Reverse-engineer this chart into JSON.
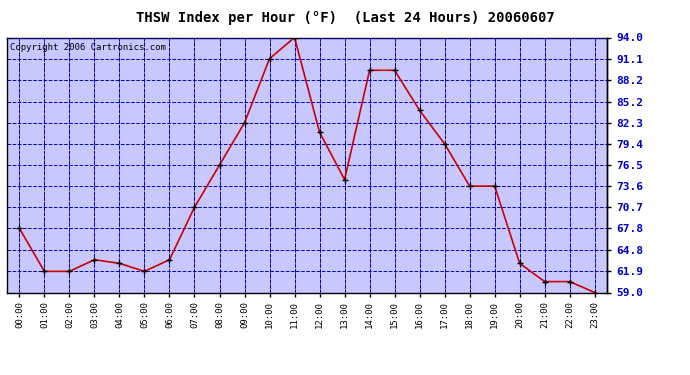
{
  "title": "THSW Index per Hour (°F)  (Last 24 Hours) 20060607",
  "copyright": "Copyright 2006 Cartronics.com",
  "hours": [
    "00:00",
    "01:00",
    "02:00",
    "03:00",
    "04:00",
    "05:00",
    "06:00",
    "07:00",
    "08:00",
    "09:00",
    "10:00",
    "11:00",
    "12:00",
    "13:00",
    "14:00",
    "15:00",
    "16:00",
    "17:00",
    "18:00",
    "19:00",
    "20:00",
    "21:00",
    "22:00",
    "23:00"
  ],
  "values": [
    67.8,
    61.9,
    61.9,
    63.5,
    63.0,
    61.9,
    63.5,
    70.7,
    76.5,
    82.3,
    91.1,
    94.0,
    81.0,
    74.5,
    89.5,
    89.5,
    84.0,
    79.4,
    73.6,
    73.6,
    63.0,
    60.5,
    60.5,
    59.0
  ],
  "y_ticks": [
    59.0,
    61.9,
    64.8,
    67.8,
    70.7,
    73.6,
    76.5,
    79.4,
    82.3,
    85.2,
    88.2,
    91.1,
    94.0
  ],
  "ylim": [
    59.0,
    94.0
  ],
  "line_color": "#cc0000",
  "marker_color": "#000000",
  "plot_bg_color": "#c8c8ff",
  "fig_bg_color": "#ffffff",
  "grid_color": "#0000bb",
  "tick_label_color": "#0000cc",
  "title_fontsize": 10,
  "copyright_fontsize": 6.5,
  "ylabel_fontsize": 8
}
